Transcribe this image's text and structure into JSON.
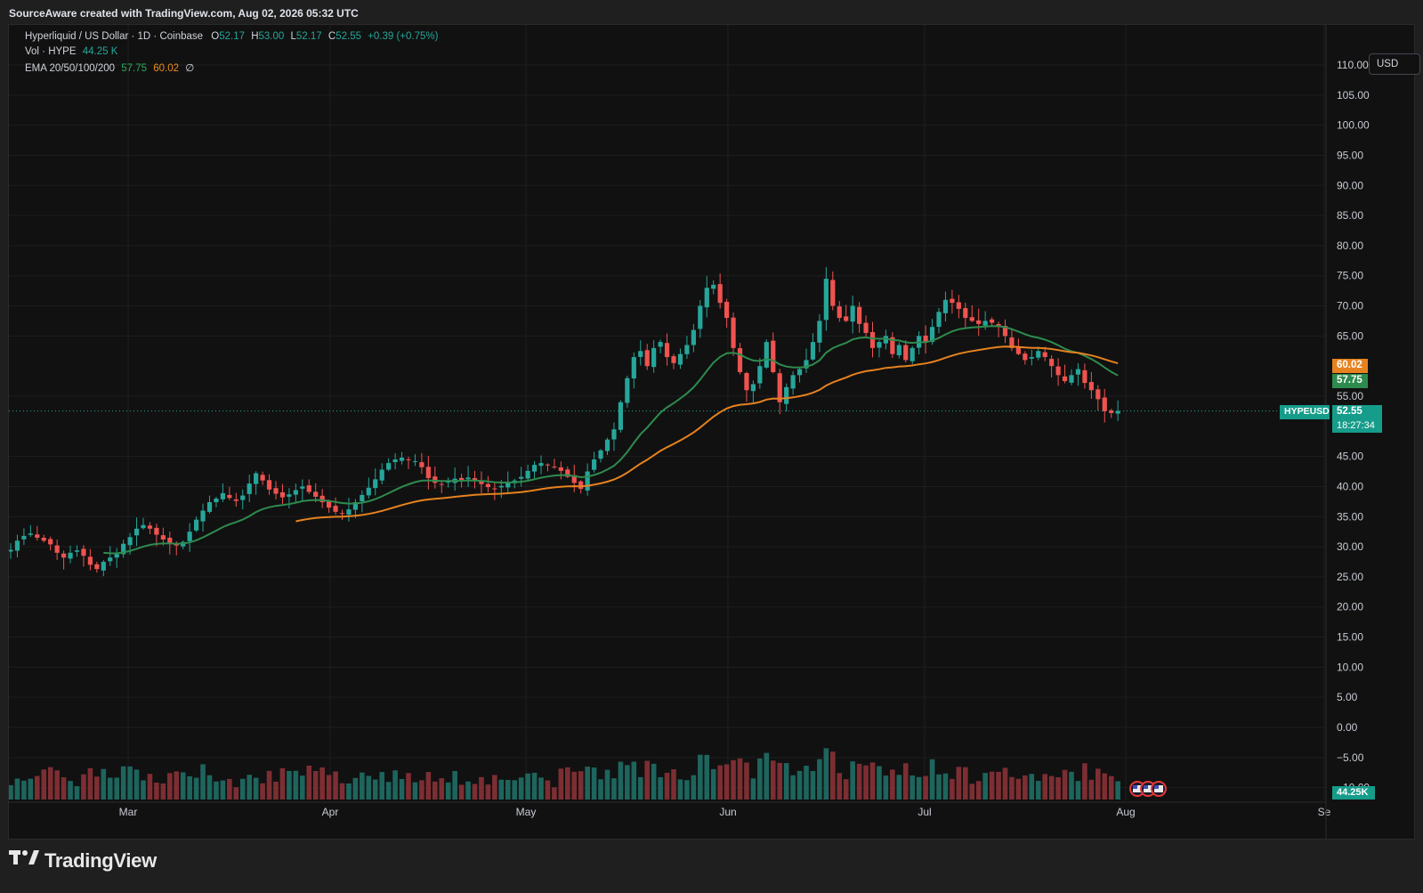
{
  "header": {
    "credit": "SourceAware created with TradingView.com, Aug 02, 2026 05:32 UTC"
  },
  "legend": {
    "symbol_line": "Hyperliquid / US Dollar · 1D · Coinbase",
    "o_label": "O",
    "o": "52.17",
    "h_label": "H",
    "h": "53.00",
    "l_label": "L",
    "l": "52.17",
    "c_label": "C",
    "c": "52.55",
    "change": "+0.39 (+0.75%)",
    "vol_label": "Vol · HYPE",
    "vol_value": "44.25 K",
    "ema_label": "EMA 20/50/100/200",
    "ema20": "57.75",
    "ema50": "60.02",
    "ema_other": "∅"
  },
  "currency_button": "USD",
  "badges": {
    "ema50": "60.02",
    "ema20": "57.75",
    "symbol": "HYPEUSD",
    "price": "52.55",
    "countdown": "18:27:34",
    "volume": "44.25K"
  },
  "colors": {
    "up": "#26a69a",
    "down": "#ef5350",
    "ema20": "#2e8b4e",
    "ema50": "#e6821f",
    "bg": "#111111",
    "grid": "#1c1c1c"
  },
  "footer": {
    "brand": "TradingView"
  },
  "chart_data": {
    "type": "candlestick",
    "title": "Hyperliquid / US Dollar · 1D · Coinbase",
    "price_axis_ticks": [
      "110.00",
      "105.00",
      "100.00",
      "95.00",
      "90.00",
      "85.00",
      "80.00",
      "75.00",
      "70.00",
      "65.00",
      "55.00",
      "45.00",
      "40.00",
      "35.00",
      "30.00",
      "25.00",
      "20.00",
      "15.00",
      "10.00",
      "5.00",
      "0.00",
      "−5.00",
      "−10.00"
    ],
    "time_axis_ticks": [
      "Mar",
      "Apr",
      "May",
      "Jun",
      "Jul",
      "Aug",
      "Se"
    ],
    "ylim": [
      -10,
      112
    ],
    "last_price": 52.55,
    "ohlc_closes": [
      29.5,
      31,
      31.8,
      32.2,
      31.5,
      31,
      30.4,
      29,
      28.2,
      29,
      29.4,
      28.5,
      27,
      26.3,
      27.5,
      28.2,
      28.8,
      30.5,
      31.6,
      33,
      33.6,
      33,
      32,
      31.2,
      30.5,
      30.2,
      30.8,
      32.5,
      34.5,
      36,
      37.4,
      38,
      38.9,
      38.1,
      37.6,
      38.5,
      40.5,
      42.2,
      41,
      39.5,
      38.8,
      38.2,
      38.7,
      39.4,
      40,
      39.1,
      38.3,
      37.4,
      36.5,
      35.8,
      35.6,
      36.2,
      37.4,
      38.6,
      39.8,
      41.2,
      42.8,
      43.9,
      44.5,
      44.8,
      44.4,
      44.2,
      43.2,
      41.4,
      40.6,
      40.4,
      40.8,
      41.3,
      41.1,
      41.5,
      40.9,
      40.4,
      39.9,
      39.6,
      40.1,
      40.7,
      41,
      41.6,
      42.6,
      43.6,
      43.9,
      43.6,
      43.3,
      42.6,
      41.6,
      40.6,
      39.6,
      42.5,
      44.5,
      46,
      47.8,
      49.5,
      54,
      58,
      61.5,
      62.5,
      60,
      63,
      64,
      61.5,
      60.5,
      62,
      63.5,
      66,
      70,
      73,
      73.5,
      70.5,
      68,
      63,
      59,
      56,
      57,
      60,
      64,
      59,
      54,
      56.5,
      58.5,
      59.5,
      61,
      64,
      67.5,
      74.5,
      70,
      68,
      67.5,
      70,
      67,
      65.5,
      63,
      64,
      65,
      62,
      63.5,
      61,
      63,
      65,
      64,
      66.5,
      69,
      71,
      70.5,
      69.5,
      68,
      67.5,
      67,
      67.5,
      67.2,
      66.5,
      65,
      63,
      62,
      61,
      61.5,
      62.5,
      61.5,
      60,
      58.5,
      57.5,
      58.5,
      59.5,
      57.2,
      56,
      54.5,
      52.5,
      52.2,
      52.55
    ],
    "volume_axis": "shared",
    "ema": [
      {
        "name": "EMA 20",
        "last": 57.75
      },
      {
        "name": "EMA 50",
        "last": 60.02
      }
    ],
    "last_volume": "44.25K"
  }
}
